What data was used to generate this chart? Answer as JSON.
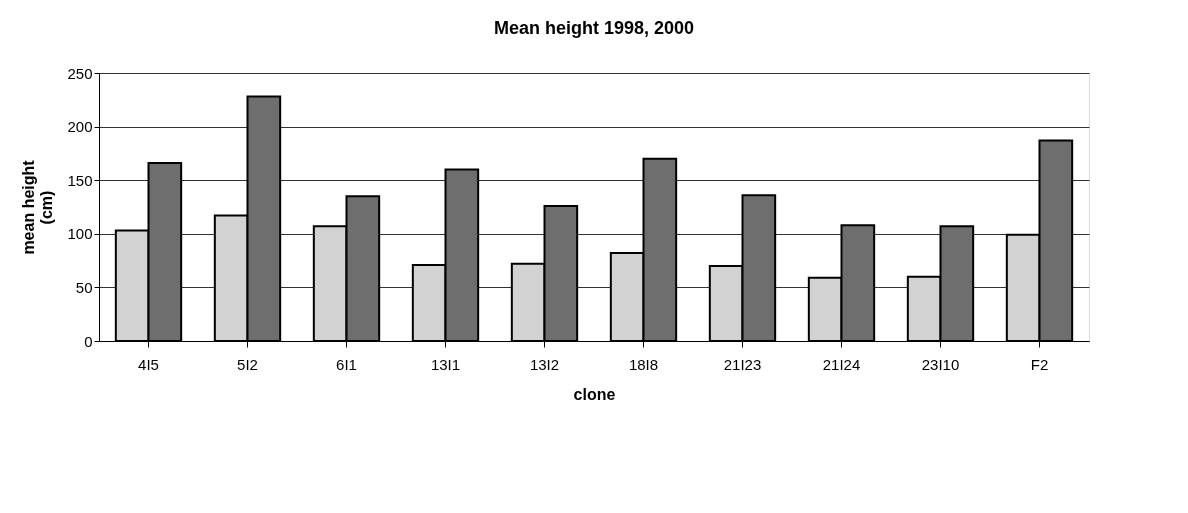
{
  "chart_data": {
    "type": "bar",
    "title": "Mean height 1998, 2000",
    "xlabel": "clone",
    "ylabel": "mean height (cm)",
    "categories": [
      "4I5",
      "5I2",
      "6I1",
      "13I1",
      "13I2",
      "18I8",
      "21I23",
      "21I24",
      "23I10",
      "F2"
    ],
    "series": [
      {
        "color": "#d2d2d2",
        "values": [
          103,
          117,
          107,
          71,
          72,
          82,
          70,
          59,
          60,
          99
        ]
      },
      {
        "color": "#6e6e6e",
        "values": [
          166,
          228,
          135,
          160,
          126,
          170,
          136,
          108,
          107,
          187
        ]
      }
    ],
    "ylim": [
      0,
      250
    ],
    "yticks": [
      0,
      50,
      100,
      150,
      200,
      250
    ],
    "grid": "y",
    "legend": false
  }
}
